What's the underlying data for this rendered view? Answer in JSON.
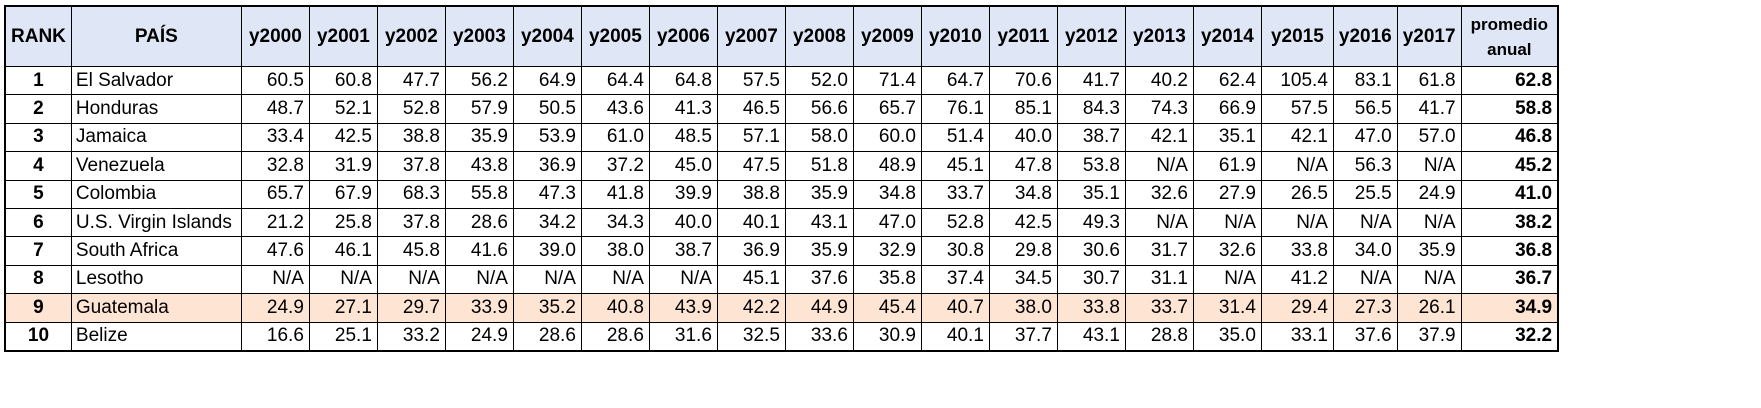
{
  "table": {
    "headers": [
      "RANK",
      "PAÍS",
      "y2000",
      "y2001",
      "y2002",
      "y2003",
      "y2004",
      "y2005",
      "y2006",
      "y2007",
      "y2008",
      "y2009",
      "y2010",
      "y2011",
      "y2012",
      "y2013",
      "y2014",
      "y2015",
      "y2016",
      "y2017",
      "promedio anual"
    ],
    "highlight_color": "#fde4d3",
    "header_bg_color": "#dfe6f5",
    "rows": [
      {
        "rank": "1",
        "country": "El Salvador",
        "values": [
          "60.5",
          "60.8",
          "47.7",
          "56.2",
          "64.9",
          "64.4",
          "64.8",
          "57.5",
          "52.0",
          "71.4",
          "64.7",
          "70.6",
          "41.7",
          "40.2",
          "62.4",
          "105.4",
          "83.1",
          "61.8"
        ],
        "avg": "62.8",
        "highlight": false
      },
      {
        "rank": "2",
        "country": "Honduras",
        "values": [
          "48.7",
          "52.1",
          "52.8",
          "57.9",
          "50.5",
          "43.6",
          "41.3",
          "46.5",
          "56.6",
          "65.7",
          "76.1",
          "85.1",
          "84.3",
          "74.3",
          "66.9",
          "57.5",
          "56.5",
          "41.7"
        ],
        "avg": "58.8",
        "highlight": false
      },
      {
        "rank": "3",
        "country": "Jamaica",
        "values": [
          "33.4",
          "42.5",
          "38.8",
          "35.9",
          "53.9",
          "61.0",
          "48.5",
          "57.1",
          "58.0",
          "60.0",
          "51.4",
          "40.0",
          "38.7",
          "42.1",
          "35.1",
          "42.1",
          "47.0",
          "57.0"
        ],
        "avg": "46.8",
        "highlight": false
      },
      {
        "rank": "4",
        "country": "Venezuela",
        "values": [
          "32.8",
          "31.9",
          "37.8",
          "43.8",
          "36.9",
          "37.2",
          "45.0",
          "47.5",
          "51.8",
          "48.9",
          "45.1",
          "47.8",
          "53.8",
          "N/A",
          "61.9",
          "N/A",
          "56.3",
          "N/A"
        ],
        "avg": "45.2",
        "highlight": false
      },
      {
        "rank": "5",
        "country": "Colombia",
        "values": [
          "65.7",
          "67.9",
          "68.3",
          "55.8",
          "47.3",
          "41.8",
          "39.9",
          "38.8",
          "35.9",
          "34.8",
          "33.7",
          "34.8",
          "35.1",
          "32.6",
          "27.9",
          "26.5",
          "25.5",
          "24.9"
        ],
        "avg": "41.0",
        "highlight": false
      },
      {
        "rank": "6",
        "country": "U.S. Virgin Islands",
        "values": [
          "21.2",
          "25.8",
          "37.8",
          "28.6",
          "34.2",
          "34.3",
          "40.0",
          "40.1",
          "43.1",
          "47.0",
          "52.8",
          "42.5",
          "49.3",
          "N/A",
          "N/A",
          "N/A",
          "N/A",
          "N/A"
        ],
        "avg": "38.2",
        "highlight": false
      },
      {
        "rank": "7",
        "country": "South Africa",
        "values": [
          "47.6",
          "46.1",
          "45.8",
          "41.6",
          "39.0",
          "38.0",
          "38.7",
          "36.9",
          "35.9",
          "32.9",
          "30.8",
          "29.8",
          "30.6",
          "31.7",
          "32.6",
          "33.8",
          "34.0",
          "35.9"
        ],
        "avg": "36.8",
        "highlight": false
      },
      {
        "rank": "8",
        "country": "Lesotho",
        "values": [
          "N/A",
          "N/A",
          "N/A",
          "N/A",
          "N/A",
          "N/A",
          "N/A",
          "45.1",
          "37.6",
          "35.8",
          "37.4",
          "34.5",
          "30.7",
          "31.1",
          "N/A",
          "41.2",
          "N/A",
          "N/A"
        ],
        "avg": "36.7",
        "highlight": false
      },
      {
        "rank": "9",
        "country": "Guatemala",
        "values": [
          "24.9",
          "27.1",
          "29.7",
          "33.9",
          "35.2",
          "40.8",
          "43.9",
          "42.2",
          "44.9",
          "45.4",
          "40.7",
          "38.0",
          "33.8",
          "33.7",
          "31.4",
          "29.4",
          "27.3",
          "26.1"
        ],
        "avg": "34.9",
        "highlight": true
      },
      {
        "rank": "10",
        "country": "Belize",
        "values": [
          "16.6",
          "25.1",
          "33.2",
          "24.9",
          "28.6",
          "28.6",
          "31.6",
          "32.5",
          "33.6",
          "30.9",
          "40.1",
          "37.7",
          "43.1",
          "28.8",
          "35.0",
          "33.1",
          "37.6",
          "37.9"
        ],
        "avg": "32.2",
        "highlight": false
      }
    ]
  }
}
